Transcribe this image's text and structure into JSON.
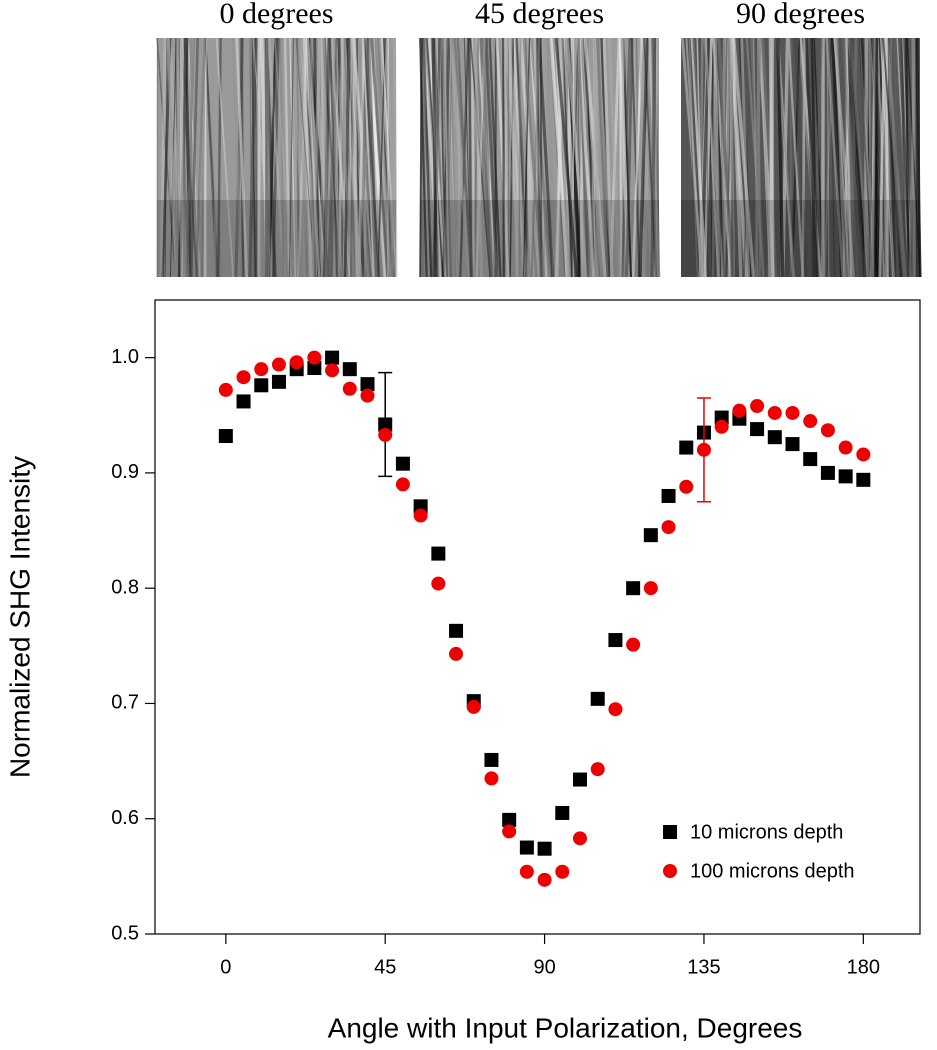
{
  "images": [
    {
      "title": "0 degrees",
      "shade": "#9a9a9a"
    },
    {
      "title": "45 degrees",
      "shade": "#9a9a9a"
    },
    {
      "title": "90 degrees",
      "shade": "#555555"
    }
  ],
  "chart_data": {
    "type": "scatter",
    "x_label": "Angle with Input Polarization, Degrees",
    "y_label": "Normalized SHG Intensity",
    "x": [
      0,
      5,
      10,
      15,
      20,
      25,
      30,
      35,
      40,
      45,
      50,
      55,
      60,
      65,
      70,
      75,
      80,
      85,
      90,
      95,
      100,
      105,
      110,
      115,
      120,
      125,
      130,
      135,
      140,
      145,
      150,
      155,
      160,
      165,
      170,
      175,
      180
    ],
    "series": [
      {
        "name": "10  microns depth",
        "color": "#000000",
        "marker": "square",
        "values": [
          0.932,
          0.962,
          0.976,
          0.979,
          0.99,
          0.991,
          1.0,
          0.99,
          0.977,
          0.942,
          0.908,
          0.871,
          0.83,
          0.763,
          0.702,
          0.651,
          0.599,
          0.575,
          0.574,
          0.605,
          0.634,
          0.704,
          0.755,
          0.8,
          0.846,
          0.88,
          0.922,
          0.935,
          0.948,
          0.947,
          0.938,
          0.931,
          0.925,
          0.912,
          0.9,
          0.897,
          0.894
        ],
        "errors": [
          null,
          null,
          null,
          null,
          null,
          null,
          null,
          null,
          null,
          0.045,
          null,
          null,
          null,
          null,
          null,
          null,
          null,
          null,
          null,
          null,
          null,
          null,
          null,
          null,
          null,
          null,
          null,
          null,
          null,
          null,
          null,
          null,
          null,
          null,
          null,
          null,
          null
        ]
      },
      {
        "name": "100  microns depth",
        "color": "#ee0000",
        "marker": "circle",
        "values": [
          0.972,
          0.983,
          0.99,
          0.994,
          0.996,
          1.0,
          0.989,
          0.973,
          0.967,
          0.933,
          0.89,
          0.863,
          0.804,
          0.743,
          0.697,
          0.635,
          0.589,
          0.554,
          0.547,
          0.554,
          0.583,
          0.643,
          0.695,
          0.751,
          0.8,
          0.853,
          0.888,
          0.92,
          0.94,
          0.954,
          0.958,
          0.952,
          0.952,
          0.945,
          0.937,
          0.922,
          0.916
        ],
        "errors": [
          null,
          null,
          null,
          null,
          null,
          null,
          null,
          null,
          null,
          null,
          null,
          null,
          null,
          null,
          null,
          null,
          null,
          null,
          null,
          null,
          null,
          null,
          null,
          null,
          null,
          null,
          null,
          0.045,
          null,
          null,
          null,
          null,
          null,
          null,
          null,
          null,
          null
        ]
      }
    ],
    "xlim": [
      -20,
      196
    ],
    "ylim": [
      0.5,
      1.05
    ],
    "xticks": [
      0,
      45,
      90,
      135,
      180
    ],
    "yticks": [
      {
        "value": 0.5,
        "label": "0.5"
      },
      {
        "value": 0.6,
        "label": "0.6"
      },
      {
        "value": 0.7,
        "label": "0.7"
      },
      {
        "value": 0.8,
        "label": "0.8"
      },
      {
        "value": 0.9,
        "label": "0.9"
      },
      {
        "value": 1.0,
        "label": "1.0"
      }
    ],
    "legend": "lower right"
  }
}
